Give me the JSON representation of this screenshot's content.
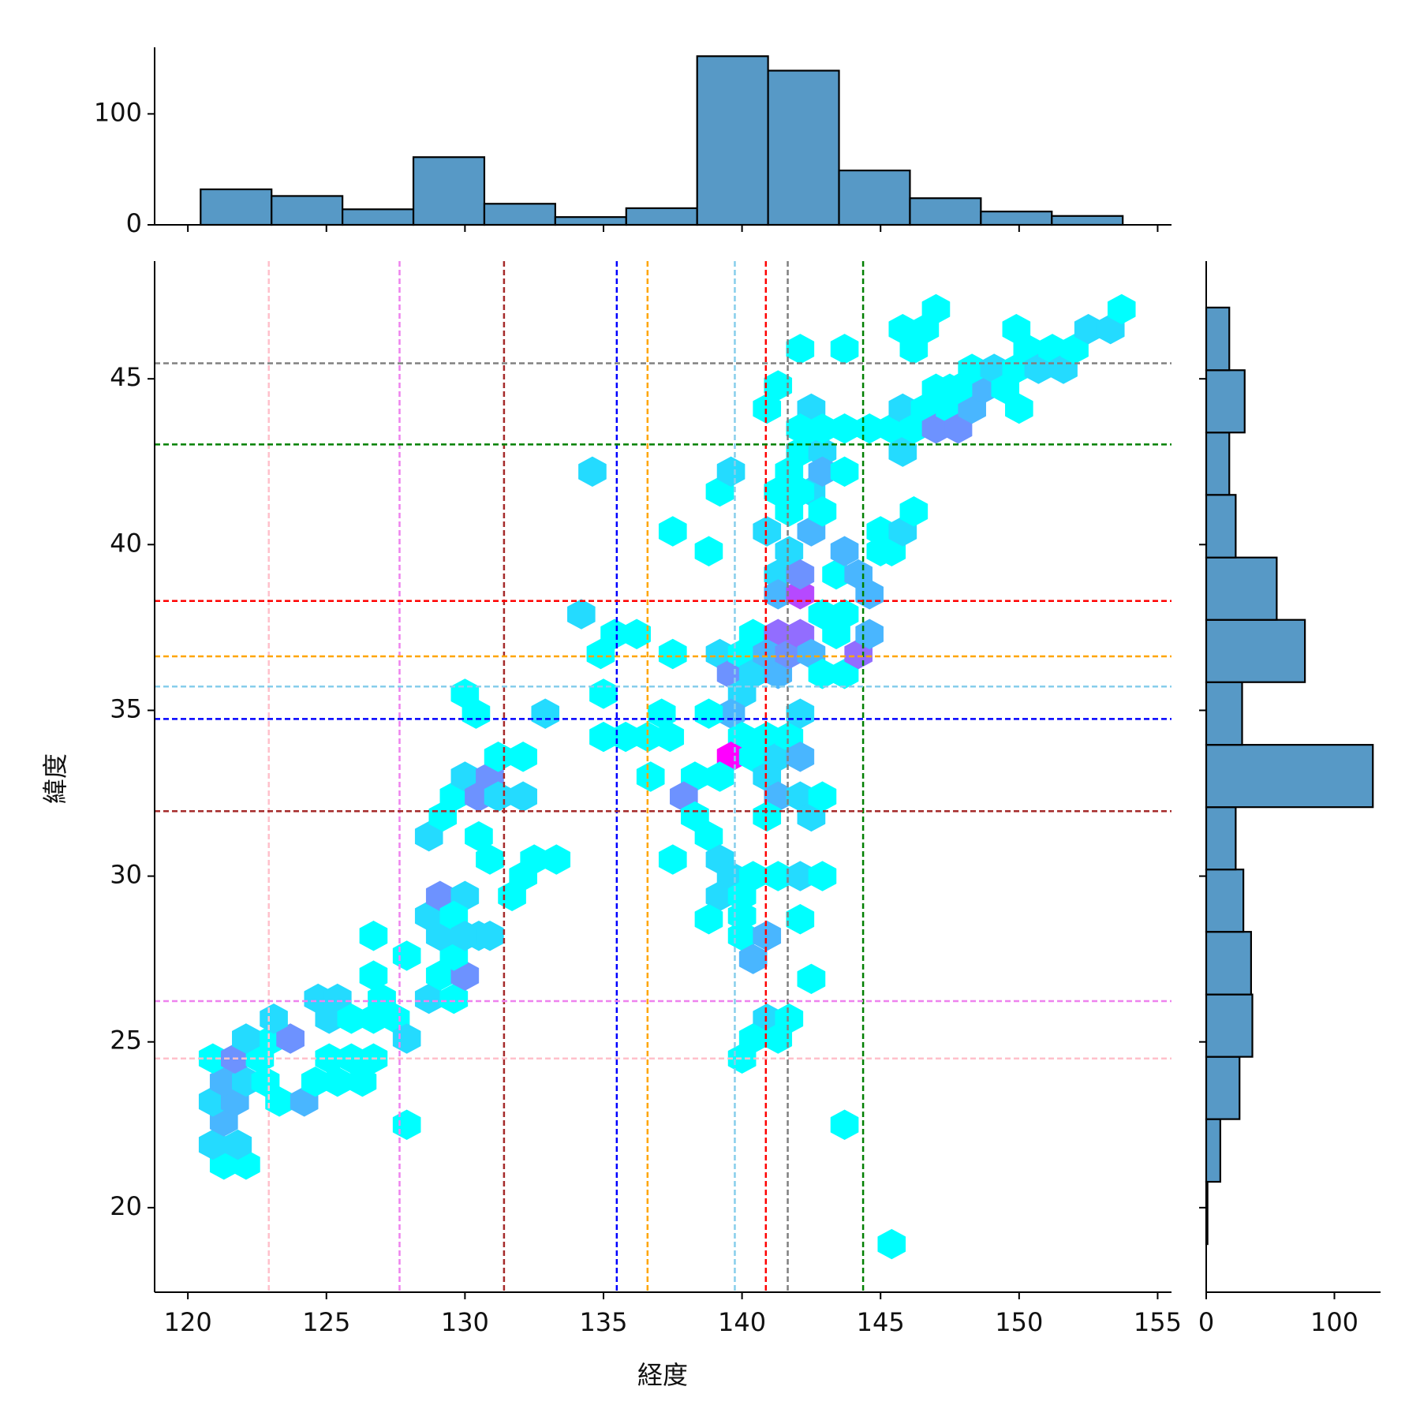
{
  "chart_data": [
    {
      "type": "hexbin",
      "xlabel": "経度",
      "ylabel": "緯度",
      "cmap": "cool",
      "xlim": [
        118.8,
        155.5
      ],
      "ylim": [
        17.45,
        48.55
      ],
      "xticks": [
        120,
        125,
        130,
        135,
        140,
        145,
        150,
        155
      ],
      "yticks": [
        20,
        25,
        30,
        35,
        40,
        45
      ],
      "x": [
        121.3,
        122.1,
        120.9,
        121.8,
        121.3,
        120.9,
        121.7,
        121.3,
        122.1,
        122.8,
        120.9,
        121.7,
        122.6,
        122.1,
        123.1,
        123.7,
        123.1,
        123.3,
        124.2,
        124.6,
        125.1,
        125.4,
        126.3,
        125.9,
        126.7,
        124.7,
        125.4,
        125.1,
        125.9,
        126.7,
        127.5,
        127.0,
        126.7,
        127.9,
        126.7,
        127.9,
        127.9,
        128.7,
        129.6,
        129.1,
        130.0,
        129.6,
        128.7,
        129.1,
        130.0,
        129.1,
        129.6,
        130.0,
        130.5,
        130.9,
        128.7,
        129.2,
        129.6,
        130.0,
        130.9,
        130.5,
        131.2,
        132.1,
        131.2,
        132.1,
        130.5,
        130.9,
        131.7,
        132.1,
        132.5,
        133.3,
        130.0,
        130.4,
        132.9,
        134.2,
        134.6,
        134.9,
        135.4,
        136.2,
        135.0,
        135.0,
        135.8,
        136.6,
        137.4,
        137.1,
        136.7,
        137.5,
        137.5,
        137.5,
        138.8,
        139.2,
        139.6,
        139.2,
        139.6,
        140.0,
        140.4,
        140.4,
        140.0,
        139.6,
        138.8,
        140.0,
        139.6,
        139.2,
        138.3,
        137.9,
        138.3,
        138.8,
        139.2,
        139.6,
        139.2,
        140.0,
        140.4,
        138.8,
        140.0,
        140.0,
        140.9,
        140.4,
        140.4,
        140.9,
        141.3,
        140.9,
        141.3,
        140.9,
        141.7,
        142.1,
        142.1,
        142.1,
        142.5,
        142.9,
        141.3,
        142.1,
        142.9,
        142.1,
        142.5,
        140.9,
        141.7,
        140.4,
        141.3,
        140.0,
        143.7,
        145.4,
        140.9,
        141.3,
        141.3,
        142.1,
        141.3,
        141.3,
        140.9,
        141.7,
        142.1,
        142.5,
        141.7,
        142.1,
        142.5,
        141.7,
        142.5,
        142.9,
        142.1,
        141.3,
        141.7,
        142.1,
        142.5,
        142.5,
        142.9,
        142.9,
        143.7,
        141.3,
        140.9,
        142.1,
        143.7,
        143.4,
        142.9,
        143.7,
        143.4,
        142.9,
        143.7,
        144.2,
        144.6,
        144.6,
        143.7,
        144.2,
        145.0,
        145.4,
        145.0,
        145.8,
        146.2,
        142.1,
        142.9,
        143.7,
        144.6,
        145.4,
        145.8,
        145.8,
        146.2,
        146.6,
        147.0,
        147.5,
        147.8,
        147.5,
        148.3,
        148.7,
        147.0,
        147.8,
        148.3,
        149.1,
        149.5,
        150.0,
        149.9,
        150.3,
        149.9,
        150.7,
        151.2,
        151.6,
        152.0,
        152.5,
        153.3,
        153.7,
        146.2,
        145.8,
        146.6,
        147.0
      ],
      "y": [
        21.3,
        21.3,
        21.9,
        21.9,
        22.6,
        23.2,
        23.2,
        23.8,
        23.8,
        23.8,
        24.5,
        24.5,
        24.5,
        25.1,
        25.1,
        25.1,
        25.7,
        23.2,
        23.2,
        23.8,
        24.5,
        23.8,
        23.8,
        24.5,
        24.5,
        26.3,
        26.3,
        25.7,
        25.7,
        25.7,
        25.7,
        26.3,
        27.0,
        25.1,
        28.2,
        27.6,
        22.5,
        26.3,
        26.3,
        27.0,
        27.0,
        27.6,
        28.8,
        29.4,
        29.4,
        28.2,
        28.8,
        28.2,
        28.2,
        28.2,
        31.2,
        31.8,
        32.4,
        33.0,
        33.0,
        32.4,
        32.4,
        32.4,
        33.6,
        33.6,
        31.2,
        30.5,
        29.4,
        30.0,
        30.5,
        30.5,
        35.5,
        34.9,
        34.9,
        37.9,
        42.2,
        36.7,
        37.3,
        37.3,
        35.5,
        34.2,
        34.2,
        34.2,
        34.2,
        34.9,
        33.0,
        36.7,
        40.4,
        30.5,
        39.8,
        41.6,
        42.2,
        36.7,
        36.1,
        36.7,
        37.3,
        36.1,
        35.5,
        34.9,
        34.9,
        34.2,
        33.6,
        33.0,
        33.0,
        32.4,
        31.8,
        31.2,
        30.5,
        30.0,
        29.4,
        29.4,
        30.0,
        28.7,
        28.8,
        28.2,
        28.2,
        27.5,
        33.6,
        34.2,
        33.6,
        33.0,
        32.4,
        31.8,
        34.2,
        34.9,
        33.6,
        32.4,
        31.8,
        32.4,
        30.0,
        30.0,
        30.0,
        28.7,
        26.9,
        25.7,
        25.7,
        25.1,
        25.1,
        24.5,
        22.5,
        18.9,
        40.4,
        39.1,
        38.5,
        38.5,
        37.3,
        36.1,
        36.7,
        36.7,
        37.3,
        36.7,
        39.8,
        39.1,
        40.4,
        41.0,
        41.6,
        41.0,
        41.6,
        41.6,
        42.2,
        42.8,
        43.5,
        44.1,
        42.8,
        42.2,
        42.2,
        44.8,
        44.1,
        45.9,
        45.9,
        39.1,
        37.9,
        37.9,
        37.3,
        36.1,
        36.1,
        36.7,
        37.3,
        38.5,
        39.8,
        39.1,
        39.8,
        39.8,
        40.4,
        40.4,
        41.0,
        43.5,
        43.5,
        43.5,
        43.5,
        43.5,
        42.8,
        44.1,
        43.5,
        44.1,
        43.5,
        44.1,
        43.5,
        44.7,
        44.1,
        44.7,
        44.7,
        44.7,
        45.3,
        45.3,
        44.7,
        44.1,
        45.3,
        45.9,
        46.5,
        45.3,
        45.9,
        45.3,
        45.9,
        46.5,
        46.5,
        47.1,
        45.9,
        46.5,
        46.5,
        47.1
      ],
      "counts": [
        1,
        1,
        2,
        2,
        3,
        2,
        3,
        3,
        2,
        1,
        1,
        4,
        1,
        2,
        1,
        4,
        2,
        1,
        3,
        1,
        1,
        1,
        1,
        1,
        1,
        2,
        2,
        2,
        1,
        1,
        1,
        1,
        1,
        2,
        1,
        1,
        1,
        2,
        1,
        1,
        4,
        1,
        2,
        4,
        2,
        2,
        1,
        2,
        2,
        2,
        2,
        1,
        1,
        2,
        4,
        4,
        2,
        2,
        1,
        1,
        1,
        1,
        1,
        1,
        1,
        1,
        1,
        1,
        2,
        2,
        2,
        1,
        1,
        1,
        1,
        1,
        1,
        1,
        1,
        1,
        1,
        1,
        1,
        1,
        1,
        1,
        2,
        2,
        4,
        1,
        1,
        2,
        2,
        3,
        1,
        1,
        8,
        1,
        1,
        4,
        1,
        1,
        2,
        2,
        2,
        1,
        1,
        1,
        1,
        1,
        3,
        3,
        1,
        1,
        2,
        2,
        3,
        1,
        1,
        2,
        3,
        2,
        2,
        1,
        1,
        2,
        1,
        1,
        1,
        2,
        1,
        1,
        1,
        1,
        1,
        1,
        2,
        2,
        3,
        6,
        5,
        3,
        3,
        4,
        5,
        3,
        2,
        4,
        3,
        1,
        2,
        1,
        1,
        1,
        1,
        1,
        1,
        2,
        2,
        3,
        1,
        1,
        1,
        1,
        1,
        1,
        1,
        1,
        1,
        1,
        1,
        5,
        3,
        3,
        3,
        3,
        1,
        1,
        1,
        2,
        1,
        1,
        1,
        1,
        1,
        1,
        2,
        2,
        1,
        1,
        4,
        1,
        4,
        1,
        3,
        3,
        1,
        1,
        1,
        2,
        1,
        1,
        1,
        1,
        1,
        2,
        1,
        2,
        1,
        2,
        2,
        1,
        1,
        1,
        1,
        1
      ],
      "vlines": {
        "values": [
          122.92,
          127.64,
          131.41,
          135.48,
          136.59,
          139.74,
          140.86,
          141.65,
          144.37
        ],
        "colors": [
          "pink",
          "violet",
          "brown",
          "blue",
          "orange",
          "skyblue",
          "red",
          "gray",
          "green"
        ]
      },
      "hlines": {
        "values": [
          24.5,
          26.23,
          31.96,
          34.74,
          36.63,
          35.72,
          38.3,
          45.47,
          43.02
        ],
        "colors": [
          "pink",
          "violet",
          "brown",
          "blue",
          "orange",
          "skyblue",
          "red",
          "gray",
          "green"
        ]
      }
    },
    {
      "type": "histogram",
      "orientation": "vertical",
      "color": "#5799c6",
      "bins": [
        120.46,
        123.02,
        125.58,
        128.14,
        130.7,
        133.26,
        135.82,
        138.38,
        140.94,
        143.5,
        146.06,
        148.62,
        151.18,
        153.74
      ],
      "counts": [
        32,
        26,
        14,
        61,
        19,
        7,
        15,
        152,
        139,
        49,
        24,
        12,
        8
      ],
      "ylim": [
        0,
        160
      ],
      "yticks": [
        0,
        100
      ]
    },
    {
      "type": "histogram",
      "orientation": "horizontal",
      "color": "#5799c6",
      "bins": [
        18.9,
        20.78,
        22.67,
        24.55,
        26.43,
        28.32,
        30.2,
        32.08,
        33.96,
        35.85,
        37.73,
        39.61,
        41.5,
        43.38,
        45.26,
        47.15
      ],
      "counts": [
        1,
        11,
        26,
        36,
        35,
        29,
        23,
        130,
        28,
        77,
        55,
        23,
        18,
        30,
        18
      ],
      "xlim": [
        0,
        136
      ],
      "xticks": [
        0,
        100
      ]
    }
  ]
}
